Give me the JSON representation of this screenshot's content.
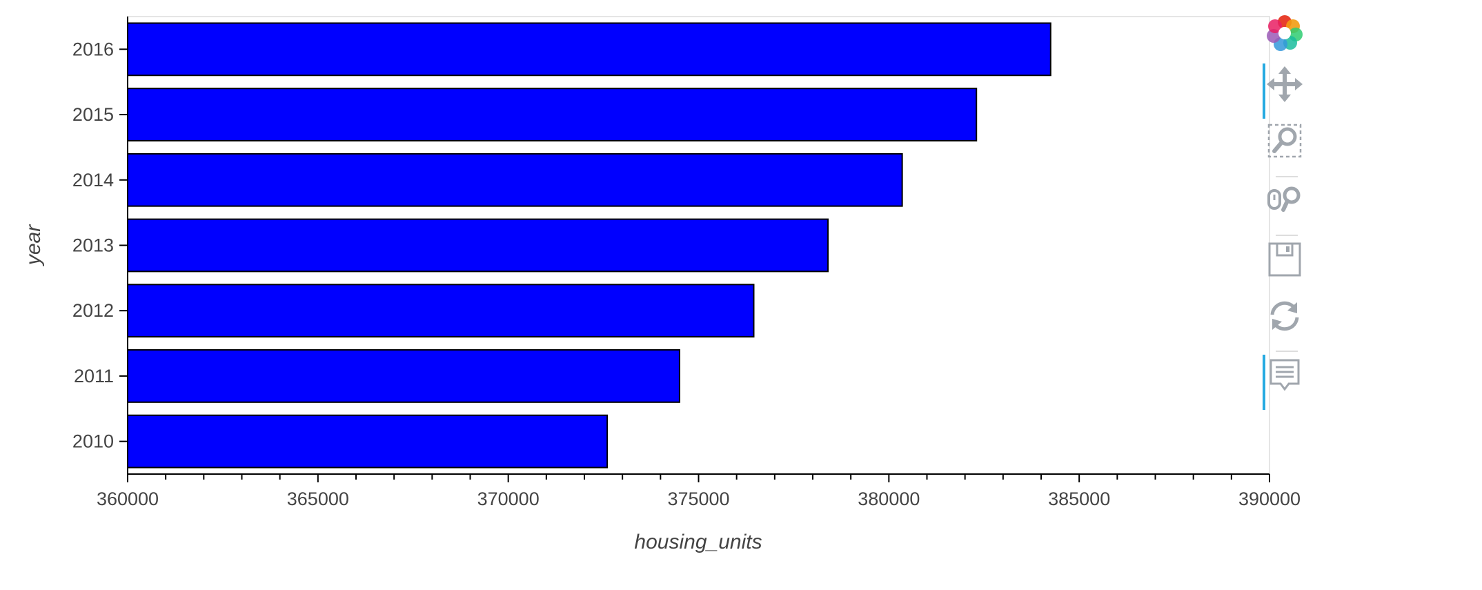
{
  "chart_data": {
    "type": "bar",
    "orientation": "horizontal",
    "categories": [
      "2010",
      "2011",
      "2012",
      "2013",
      "2014",
      "2015",
      "2016"
    ],
    "values": [
      372600,
      374500,
      376450,
      378400,
      380350,
      382300,
      384250
    ],
    "xlabel": "housing_units",
    "ylabel": "year",
    "xlim": [
      360000,
      390000
    ],
    "x_ticks": [
      360000,
      365000,
      370000,
      375000,
      380000,
      385000,
      390000
    ],
    "x_tick_labels": [
      "360000",
      "365000",
      "370000",
      "375000",
      "380000",
      "385000",
      "390000"
    ],
    "bar_color": "#0000ff",
    "bar_outline_color": "#000000",
    "grid": false,
    "legend": false
  },
  "toolbar": {
    "tools": [
      {
        "icon": "bokeh-logo-icon",
        "active": false
      },
      {
        "icon": "pan-icon",
        "active": true
      },
      {
        "icon": "box-zoom-icon",
        "active": false
      },
      {
        "icon": "wheel-zoom-icon",
        "active": false
      },
      {
        "icon": "save-icon",
        "active": false
      },
      {
        "icon": "reset-icon",
        "active": false
      },
      {
        "icon": "hover-icon",
        "active": true
      }
    ],
    "accent_color": "#26aae1",
    "icon_color": "#a0a6ad"
  }
}
